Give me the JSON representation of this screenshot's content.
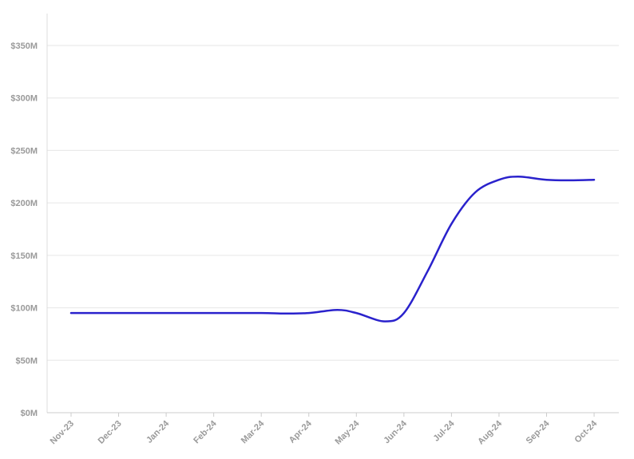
{
  "chart_data": {
    "type": "line",
    "title": "",
    "xlabel": "",
    "ylabel": "",
    "categories": [
      "Nov-23",
      "Dec-23",
      "Jan-24",
      "Feb-24",
      "Mar-24",
      "Apr-24",
      "May-24",
      "Jun-24",
      "Jul-24",
      "Aug-24",
      "Sep-24",
      "Oct-24"
    ],
    "y_ticks": [
      "$0M",
      "$50M",
      "$100M",
      "$150M",
      "$200M",
      "$250M",
      "$300M",
      "$350M"
    ],
    "ylim": [
      0,
      350
    ],
    "y_unit": "$M",
    "grid": true,
    "legend": "none",
    "series": [
      {
        "color": "#2a22cc",
        "x": [
          0,
          1,
          2,
          3,
          4,
          4.5,
          5,
          5.6,
          6,
          6.6,
          7,
          7.5,
          8,
          8.5,
          9,
          9.4,
          10,
          10.5,
          11
        ],
        "values": [
          95,
          95,
          95,
          95,
          95,
          94.5,
          95,
          98,
          95,
          87,
          95,
          135,
          180,
          210,
          222,
          225,
          222,
          221.5,
          222
        ]
      }
    ]
  }
}
